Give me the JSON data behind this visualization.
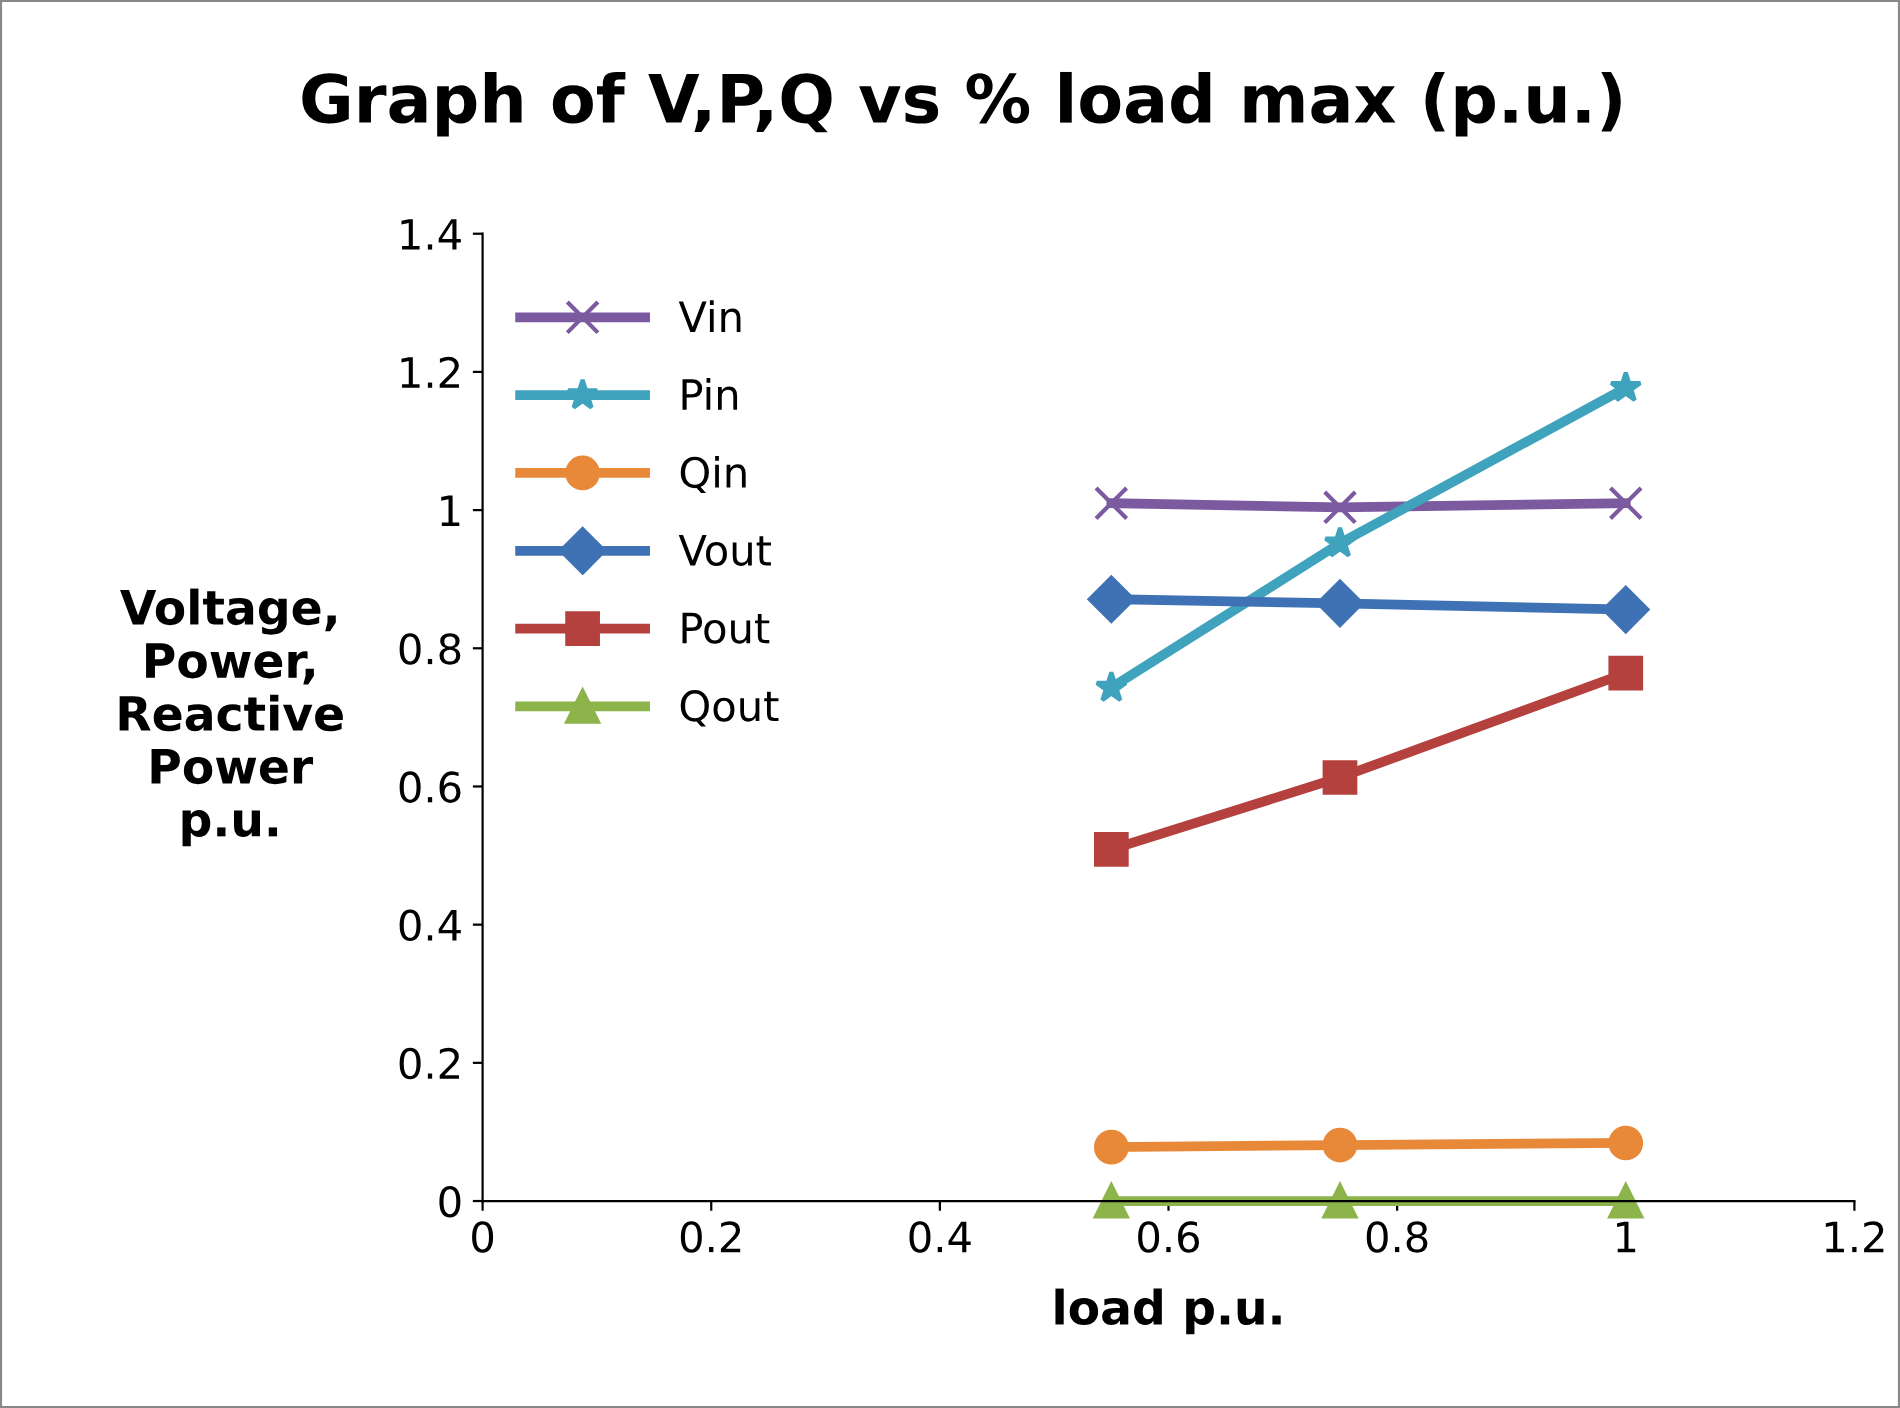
{
  "chart_data": {
    "type": "line",
    "title": "Graph of V,P,Q vs % load max (p.u.)",
    "xlabel": "load p.u.",
    "ylabel": "Voltage,\nPower,\nReactive\nPower\np.u.",
    "x": [
      0.55,
      0.75,
      1
    ],
    "series": [
      {
        "name": "Vin",
        "color": "#7b5aa0",
        "marker": "cross",
        "values": [
          1.01,
          1.004,
          1.01
        ]
      },
      {
        "name": "Pin",
        "color": "#3fa3bd",
        "marker": "star",
        "values": [
          0.743,
          0.952,
          1.177
        ]
      },
      {
        "name": "Qin",
        "color": "#e8893a",
        "marker": "circle",
        "values": [
          0.078,
          0.081,
          0.084
        ]
      },
      {
        "name": "Vout",
        "color": "#3f72b5",
        "marker": "diamond",
        "values": [
          0.871,
          0.865,
          0.856
        ]
      },
      {
        "name": "Pout",
        "color": "#b5413f",
        "marker": "square",
        "values": [
          0.509,
          0.613,
          0.764
        ]
      },
      {
        "name": "Qout",
        "color": "#8cb44a",
        "marker": "triangle",
        "values": [
          0,
          0,
          0
        ]
      }
    ],
    "xlim": [
      0,
      1.2
    ],
    "xticks": [
      0,
      0.2,
      0.4,
      0.6,
      0.8,
      1,
      1.2
    ],
    "ylim": [
      0,
      1.4
    ],
    "yticks": [
      0,
      0.2,
      0.4,
      0.6,
      0.8,
      1,
      1.2,
      1.4
    ],
    "grid": false,
    "legend": "top left",
    "line_style": "solid"
  }
}
